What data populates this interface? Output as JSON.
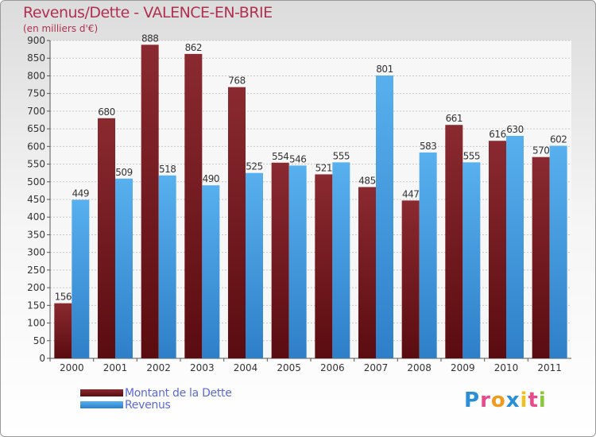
{
  "title": "Revenus/Dette - VALENCE-EN-BRIE",
  "subtitle": "(en milliers d'€)",
  "logo": {
    "letters": [
      "P",
      "r",
      "o",
      "x",
      "i",
      "t",
      "i"
    ],
    "colors": [
      "#2a8fd6",
      "#e84a8a",
      "#f09a20",
      "#2a8fd6",
      "#f0c020",
      "#e84a8a",
      "#8cc63f"
    ]
  },
  "chart_data": {
    "type": "bar",
    "categories": [
      "2000",
      "2001",
      "2002",
      "2003",
      "2004",
      "2005",
      "2006",
      "2007",
      "2008",
      "2009",
      "2010",
      "2011"
    ],
    "series": [
      {
        "name": "Montant de la Dette",
        "values": [
          156,
          680,
          888,
          862,
          768,
          554,
          521,
          485,
          447,
          661,
          616,
          570
        ],
        "color": "#7a1e24"
      },
      {
        "name": "Revenus",
        "values": [
          449,
          509,
          518,
          490,
          525,
          546,
          555,
          801,
          583,
          555,
          630,
          602
        ],
        "color": "#4aa3e6"
      }
    ],
    "ylim": [
      0,
      900
    ],
    "yticks": [
      0,
      50,
      100,
      150,
      200,
      250,
      300,
      350,
      400,
      450,
      500,
      550,
      600,
      650,
      700,
      750,
      800,
      850,
      900
    ],
    "grid": true,
    "legend": "bottom-left"
  }
}
